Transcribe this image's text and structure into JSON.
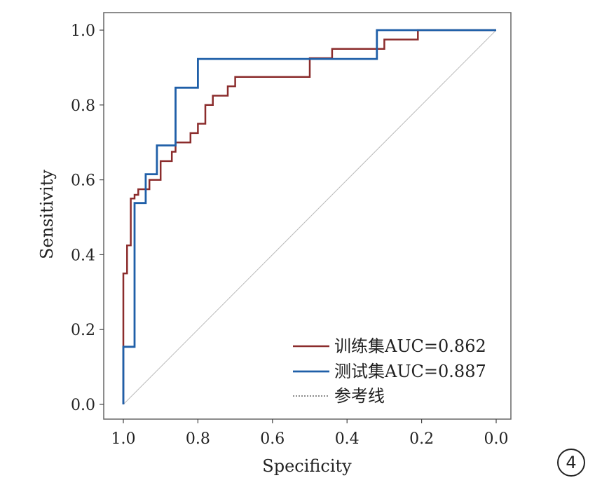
{
  "chart_data": {
    "type": "line",
    "xlabel": "Specificity",
    "ylabel": "Sensitivity",
    "xlim": [
      1.0,
      0.0
    ],
    "ylim": [
      0.0,
      1.0
    ],
    "x_ticks": [
      "1.0",
      "0.8",
      "0.6",
      "0.4",
      "0.2",
      "0.0"
    ],
    "y_ticks": [
      "0.0",
      "0.2",
      "0.4",
      "0.6",
      "0.8",
      "1.0"
    ],
    "grid": false,
    "legend_position": "bottom-right",
    "series": [
      {
        "name": "训练集AUC=0.862",
        "color": "#8b2c2c",
        "style": "solid",
        "specificity": [
          1.0,
          1.0,
          0.99,
          0.99,
          0.98,
          0.98,
          0.97,
          0.97,
          0.96,
          0.96,
          0.94,
          0.94,
          0.93,
          0.93,
          0.9,
          0.9,
          0.89,
          0.89,
          0.87,
          0.87,
          0.86,
          0.86,
          0.84,
          0.84,
          0.82,
          0.82,
          0.8,
          0.8,
          0.78,
          0.78,
          0.76,
          0.76,
          0.74,
          0.74,
          0.72,
          0.72,
          0.7,
          0.7,
          0.5,
          0.5,
          0.44,
          0.44,
          0.32,
          0.32,
          0.3,
          0.3,
          0.21,
          0.21,
          0.0
        ],
        "sensitivity": [
          0.0,
          0.35,
          0.35,
          0.425,
          0.425,
          0.55,
          0.55,
          0.56,
          0.56,
          0.575,
          0.575,
          0.575,
          0.575,
          0.6,
          0.6,
          0.65,
          0.65,
          0.65,
          0.65,
          0.675,
          0.675,
          0.7,
          0.7,
          0.7,
          0.7,
          0.725,
          0.725,
          0.75,
          0.75,
          0.8,
          0.8,
          0.825,
          0.825,
          0.825,
          0.825,
          0.85,
          0.85,
          0.875,
          0.875,
          0.925,
          0.925,
          0.95,
          0.95,
          0.95,
          0.95,
          0.975,
          0.975,
          1.0,
          1.0
        ]
      },
      {
        "name": "测试集AUC=0.887",
        "color": "#1f5fa8",
        "style": "solid",
        "specificity": [
          1.0,
          1.0,
          0.97,
          0.97,
          0.94,
          0.94,
          0.91,
          0.91,
          0.86,
          0.86,
          0.8,
          0.8,
          0.32,
          0.32,
          0.0
        ],
        "sensitivity": [
          0.0,
          0.154,
          0.154,
          0.538,
          0.538,
          0.615,
          0.615,
          0.692,
          0.692,
          0.846,
          0.846,
          0.923,
          0.923,
          1.0,
          1.0
        ]
      },
      {
        "name": "参考线",
        "color": "#bbbbbb",
        "style": "dotted",
        "specificity": [
          1.0,
          0.0
        ],
        "sensitivity": [
          0.0,
          1.0
        ]
      }
    ]
  },
  "panel_label": "4"
}
